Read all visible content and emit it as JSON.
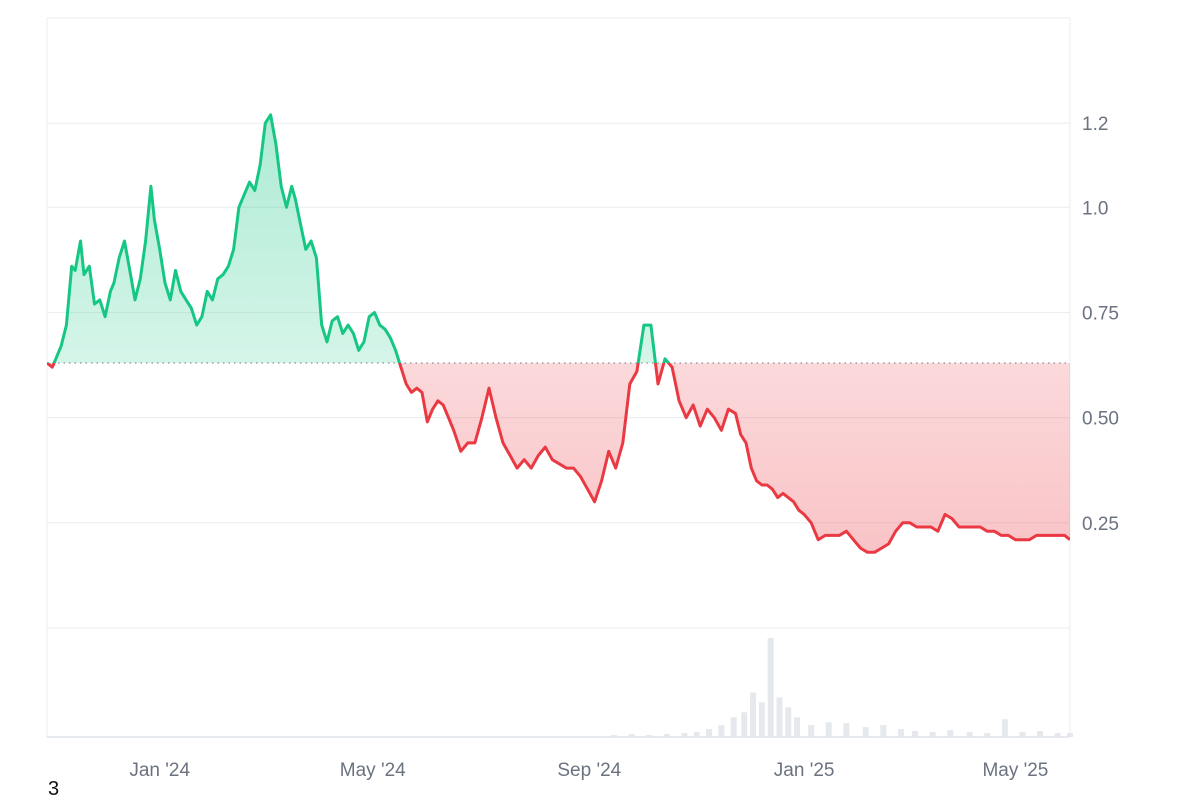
{
  "chart_data": {
    "type": "area",
    "title": "",
    "xlabel": "",
    "ylabel": "",
    "x_tick_labels": [
      "Jan '24",
      "May '24",
      "Sep '24",
      "Jan '25",
      "May '25"
    ],
    "x_tick_dates": [
      "2024-01-01",
      "2024-05-01",
      "2024-09-01",
      "2025-01-01",
      "2025-05-01"
    ],
    "y_ticks": [
      0.25,
      0.5,
      0.75,
      1.0,
      1.2
    ],
    "y_tick_labels": [
      "0.25",
      "0.50",
      "0.75",
      "1.0",
      "1.2"
    ],
    "ylim": [
      0,
      1.45
    ],
    "baseline": 0.63,
    "grid": true,
    "y_axis_position": "right",
    "colors": {
      "up": "#16c784",
      "down": "#ea3943",
      "grid": "#eceff2",
      "axis_text": "#6b7280"
    },
    "series": [
      {
        "values_x": [
          "2023-10-29",
          "2023-11-01",
          "2023-11-04",
          "2023-11-06",
          "2023-11-09",
          "2023-11-12",
          "2023-11-14",
          "2023-11-17",
          "2023-11-19",
          "2023-11-22",
          "2023-11-25",
          "2023-11-28",
          "2023-12-01",
          "2023-12-04",
          "2023-12-06",
          "2023-12-09",
          "2023-12-12",
          "2023-12-15",
          "2023-12-18",
          "2023-12-21",
          "2023-12-24",
          "2023-12-27",
          "2023-12-29",
          "2024-01-01",
          "2024-01-04",
          "2024-01-07",
          "2024-01-10",
          "2024-01-13",
          "2024-01-16",
          "2024-01-19",
          "2024-01-22",
          "2024-01-25",
          "2024-01-28",
          "2024-01-31",
          "2024-02-03",
          "2024-02-06",
          "2024-02-09",
          "2024-02-12",
          "2024-02-15",
          "2024-02-18",
          "2024-02-21",
          "2024-02-24",
          "2024-02-27",
          "2024-03-01",
          "2024-03-04",
          "2024-03-07",
          "2024-03-10",
          "2024-03-13",
          "2024-03-16",
          "2024-03-18",
          "2024-03-21",
          "2024-03-24",
          "2024-03-27",
          "2024-03-30",
          "2024-04-02",
          "2024-04-05",
          "2024-04-08",
          "2024-04-11",
          "2024-04-14",
          "2024-04-17",
          "2024-04-20",
          "2024-04-23",
          "2024-04-26",
          "2024-04-29",
          "2024-05-02",
          "2024-05-05",
          "2024-05-08",
          "2024-05-11",
          "2024-05-14",
          "2024-05-17",
          "2024-05-20",
          "2024-05-23",
          "2024-05-26",
          "2024-05-29",
          "2024-06-01",
          "2024-06-04",
          "2024-06-07",
          "2024-06-10",
          "2024-06-13",
          "2024-06-16",
          "2024-06-20",
          "2024-06-24",
          "2024-06-28",
          "2024-07-02",
          "2024-07-06",
          "2024-07-10",
          "2024-07-14",
          "2024-07-18",
          "2024-07-22",
          "2024-07-26",
          "2024-07-30",
          "2024-08-03",
          "2024-08-07",
          "2024-08-11",
          "2024-08-15",
          "2024-08-19",
          "2024-08-23",
          "2024-08-27",
          "2024-08-31",
          "2024-09-04",
          "2024-09-08",
          "2024-09-12",
          "2024-09-16",
          "2024-09-20",
          "2024-09-24",
          "2024-09-28",
          "2024-10-02",
          "2024-10-06",
          "2024-10-10",
          "2024-10-14",
          "2024-10-18",
          "2024-10-22",
          "2024-10-26",
          "2024-10-30",
          "2024-11-03",
          "2024-11-07",
          "2024-11-11",
          "2024-11-15",
          "2024-11-19",
          "2024-11-23",
          "2024-11-26",
          "2024-11-29",
          "2024-12-02",
          "2024-12-05",
          "2024-12-08",
          "2024-12-11",
          "2024-12-14",
          "2024-12-17",
          "2024-12-20",
          "2024-12-23",
          "2024-12-26",
          "2024-12-29",
          "2025-01-01",
          "2025-01-05",
          "2025-01-09",
          "2025-01-13",
          "2025-01-17",
          "2025-01-21",
          "2025-01-25",
          "2025-01-29",
          "2025-02-02",
          "2025-02-06",
          "2025-02-10",
          "2025-02-14",
          "2025-02-18",
          "2025-02-22",
          "2025-02-26",
          "2025-03-02",
          "2025-03-06",
          "2025-03-10",
          "2025-03-14",
          "2025-03-18",
          "2025-03-22",
          "2025-03-26",
          "2025-03-30",
          "2025-04-03",
          "2025-04-07",
          "2025-04-11",
          "2025-04-15",
          "2025-04-19",
          "2025-04-23",
          "2025-04-27",
          "2025-05-01",
          "2025-05-05",
          "2025-05-09",
          "2025-05-13",
          "2025-05-17",
          "2025-05-21",
          "2025-05-25",
          "2025-05-29",
          "2025-06-01"
        ],
        "values": [
          0.63,
          0.62,
          0.65,
          0.67,
          0.72,
          0.86,
          0.85,
          0.92,
          0.84,
          0.86,
          0.77,
          0.78,
          0.74,
          0.8,
          0.82,
          0.88,
          0.92,
          0.85,
          0.78,
          0.83,
          0.92,
          1.05,
          0.97,
          0.9,
          0.82,
          0.78,
          0.85,
          0.8,
          0.78,
          0.76,
          0.72,
          0.74,
          0.8,
          0.78,
          0.83,
          0.84,
          0.86,
          0.9,
          1.0,
          1.03,
          1.06,
          1.04,
          1.1,
          1.2,
          1.22,
          1.15,
          1.05,
          1.0,
          1.05,
          1.02,
          0.96,
          0.9,
          0.92,
          0.88,
          0.72,
          0.68,
          0.73,
          0.74,
          0.7,
          0.72,
          0.7,
          0.66,
          0.68,
          0.74,
          0.75,
          0.72,
          0.71,
          0.69,
          0.66,
          0.62,
          0.58,
          0.56,
          0.57,
          0.56,
          0.49,
          0.52,
          0.54,
          0.53,
          0.5,
          0.47,
          0.42,
          0.44,
          0.44,
          0.5,
          0.57,
          0.5,
          0.44,
          0.41,
          0.38,
          0.4,
          0.38,
          0.41,
          0.43,
          0.4,
          0.39,
          0.38,
          0.38,
          0.36,
          0.33,
          0.3,
          0.35,
          0.42,
          0.38,
          0.44,
          0.58,
          0.61,
          0.72,
          0.72,
          0.58,
          0.64,
          0.62,
          0.54,
          0.5,
          0.53,
          0.48,
          0.52,
          0.5,
          0.47,
          0.52,
          0.51,
          0.46,
          0.44,
          0.38,
          0.35,
          0.34,
          0.34,
          0.33,
          0.31,
          0.32,
          0.31,
          0.3,
          0.28,
          0.27,
          0.25,
          0.21,
          0.22,
          0.22,
          0.22,
          0.23,
          0.21,
          0.19,
          0.18,
          0.18,
          0.19,
          0.2,
          0.23,
          0.25,
          0.25,
          0.24,
          0.24,
          0.24,
          0.23,
          0.27,
          0.26,
          0.24,
          0.24,
          0.24,
          0.24,
          0.23,
          0.23,
          0.22,
          0.22,
          0.21,
          0.21,
          0.21,
          0.22,
          0.22,
          0.22,
          0.22,
          0.22,
          0.21,
          0.22,
          0.22,
          0.21,
          0.21
        ]
      }
    ],
    "volume": {
      "values_x": [
        "2024-09-15",
        "2024-09-25",
        "2024-10-05",
        "2024-10-15",
        "2024-10-25",
        "2024-11-01",
        "2024-11-08",
        "2024-11-15",
        "2024-11-22",
        "2024-11-28",
        "2024-12-03",
        "2024-12-08",
        "2024-12-13",
        "2024-12-18",
        "2024-12-23",
        "2024-12-28",
        "2025-01-05",
        "2025-01-15",
        "2025-01-25",
        "2025-02-05",
        "2025-02-15",
        "2025-02-25",
        "2025-03-05",
        "2025-03-15",
        "2025-03-25",
        "2025-04-05",
        "2025-04-15",
        "2025-04-25",
        "2025-05-05",
        "2025-05-15",
        "2025-05-25",
        "2025-06-01"
      ],
      "values": [
        0.02,
        0.03,
        0.02,
        0.03,
        0.04,
        0.05,
        0.08,
        0.12,
        0.2,
        0.25,
        0.45,
        0.35,
        1.0,
        0.4,
        0.3,
        0.2,
        0.12,
        0.15,
        0.14,
        0.1,
        0.12,
        0.08,
        0.06,
        0.05,
        0.07,
        0.05,
        0.04,
        0.18,
        0.05,
        0.06,
        0.04,
        0.04
      ]
    }
  },
  "footer_number": "3"
}
